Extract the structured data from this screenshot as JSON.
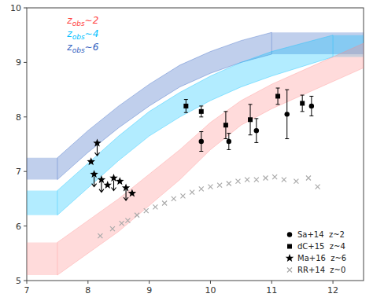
{
  "chart_data": {
    "type": "scatter",
    "xlim": [
      7.0,
      12.5
    ],
    "ylim": [
      5.0,
      10.0
    ],
    "xticks": [
      7,
      8,
      9,
      10,
      11,
      12
    ],
    "yticks": [
      5,
      6,
      7,
      8,
      9,
      10
    ],
    "grid": false,
    "legend": "lower right",
    "annotations": [
      {
        "text": "zobs∼2",
        "subscript": "obs",
        "color": "#ff4444"
      },
      {
        "text": "zobs∼4",
        "subscript": "obs",
        "color": "#00bfff"
      },
      {
        "text": "zobs∼6",
        "subscript": "obs",
        "color": "#3060c0"
      }
    ],
    "series": [
      {
        "type": "band",
        "color": "#3060c0",
        "x": [
          7.5,
          8.0,
          8.5,
          9.0,
          9.5,
          10.0,
          10.5,
          11.0
        ],
        "lower": [
          6.85,
          7.35,
          7.8,
          8.2,
          8.55,
          8.8,
          9.0,
          9.15
        ],
        "upper": [
          7.25,
          7.75,
          8.2,
          8.6,
          8.95,
          9.2,
          9.4,
          9.55
        ]
      },
      {
        "type": "band",
        "color": "#00bfff",
        "x": [
          7.5,
          8.0,
          8.5,
          9.0,
          9.5,
          10.0,
          10.5,
          11.0,
          12.0
        ],
        "lower": [
          6.2,
          6.7,
          7.2,
          7.65,
          8.0,
          8.3,
          8.55,
          8.75,
          9.1
        ],
        "upper": [
          6.65,
          7.15,
          7.65,
          8.1,
          8.45,
          8.75,
          9.0,
          9.2,
          9.5
        ]
      },
      {
        "type": "band",
        "color": "#ff8888",
        "x": [
          7.5,
          8.5,
          9.5,
          10.0,
          10.5,
          11.0,
          11.5,
          12.5
        ],
        "lower": [
          5.1,
          5.9,
          6.85,
          7.4,
          7.85,
          8.15,
          8.4,
          8.9
        ],
        "upper": [
          5.7,
          6.5,
          7.4,
          7.9,
          8.3,
          8.6,
          8.85,
          9.35
        ]
      },
      {
        "name": "Sa+14  z~2",
        "type": "scatter",
        "marker": "circle",
        "color": "#000000",
        "x": [
          9.85,
          10.3,
          10.75,
          11.25,
          11.65
        ],
        "values": [
          7.55,
          7.55,
          7.75,
          8.05,
          8.2
        ],
        "error_minus": [
          0.18,
          0.15,
          0.22,
          0.45,
          0.18
        ],
        "error_plus": [
          0.18,
          0.15,
          0.22,
          0.45,
          0.18
        ]
      },
      {
        "name": "dC+15  z~4",
        "type": "scatter",
        "marker": "square",
        "color": "#000000",
        "x": [
          9.6,
          9.85,
          10.25,
          10.65,
          11.1,
          11.5
        ],
        "values": [
          8.2,
          8.1,
          7.85,
          7.95,
          8.38,
          8.25
        ],
        "error_minus": [
          0.12,
          0.1,
          0.25,
          0.28,
          0.15,
          0.15
        ],
        "error_plus": [
          0.12,
          0.1,
          0.25,
          0.28,
          0.15,
          0.15
        ]
      },
      {
        "name": "Ma+16  z~6",
        "type": "scatter",
        "marker": "star",
        "color": "#000000",
        "x": [
          8.15,
          8.05,
          8.1,
          8.22,
          8.32,
          8.42,
          8.52,
          8.62,
          8.72
        ],
        "values": [
          7.52,
          7.18,
          6.95,
          6.85,
          6.75,
          6.88,
          6.82,
          6.7,
          6.6
        ],
        "upper_limit": [
          true,
          false,
          true,
          true,
          false,
          true,
          false,
          true,
          false
        ]
      },
      {
        "name": "RR+14  z~0",
        "type": "scatter",
        "marker": "x",
        "color": "#aaaaaa",
        "x": [
          8.2,
          8.4,
          8.55,
          8.65,
          8.8,
          8.95,
          9.1,
          9.25,
          9.4,
          9.55,
          9.7,
          9.85,
          10.0,
          10.15,
          10.3,
          10.45,
          10.6,
          10.75,
          10.9,
          11.05,
          11.2,
          11.4,
          11.6,
          11.75
        ],
        "values": [
          5.82,
          5.95,
          6.05,
          6.1,
          6.2,
          6.28,
          6.35,
          6.42,
          6.5,
          6.55,
          6.62,
          6.68,
          6.72,
          6.75,
          6.78,
          6.82,
          6.85,
          6.85,
          6.88,
          6.9,
          6.85,
          6.82,
          6.88,
          6.72
        ]
      }
    ]
  }
}
